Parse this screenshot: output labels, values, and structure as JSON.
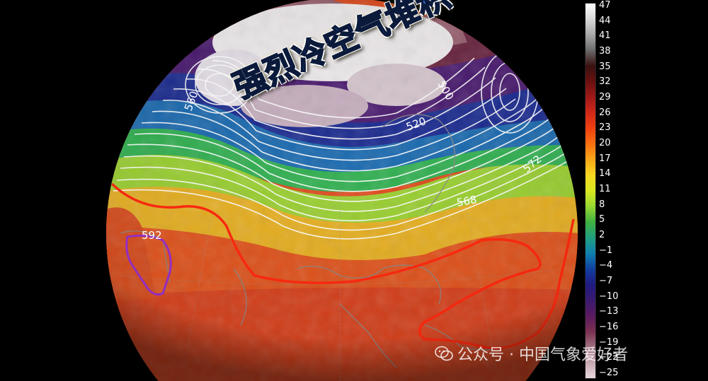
{
  "headline": "强烈冷空气堆积",
  "contour_labels": [
    {
      "text": "560"
    },
    {
      "text": "520"
    },
    {
      "text": "568"
    },
    {
      "text": "572"
    },
    {
      "text": "592"
    },
    {
      "text": "500"
    }
  ],
  "colorbar": {
    "ticks": [
      "47",
      "44",
      "41",
      "38",
      "35",
      "32",
      "29",
      "26",
      "23",
      "20",
      "17",
      "14",
      "11",
      "8",
      "5",
      "2",
      "−1",
      "−4",
      "−7",
      "−10",
      "−13",
      "−16",
      "−19",
      "−22",
      "−25"
    ],
    "colors": [
      "#ffffff",
      "#d8d8d8",
      "#a8a8a8",
      "#6a6a6a",
      "#3a1010",
      "#6a1010",
      "#a01818",
      "#d02818",
      "#f04010",
      "#f87010",
      "#f8a818",
      "#f8d820",
      "#d8e820",
      "#98d830",
      "#40b040",
      "#20a080",
      "#1080b0",
      "#1040a0",
      "#201a80",
      "#3a1a70",
      "#5a1a60",
      "#7a3050",
      "#a07080",
      "#c8a8b0",
      "#e8d8e0"
    ]
  },
  "watermark": {
    "icon": "wechat-icon",
    "text": "公众号 · 中国气象爱好者"
  }
}
